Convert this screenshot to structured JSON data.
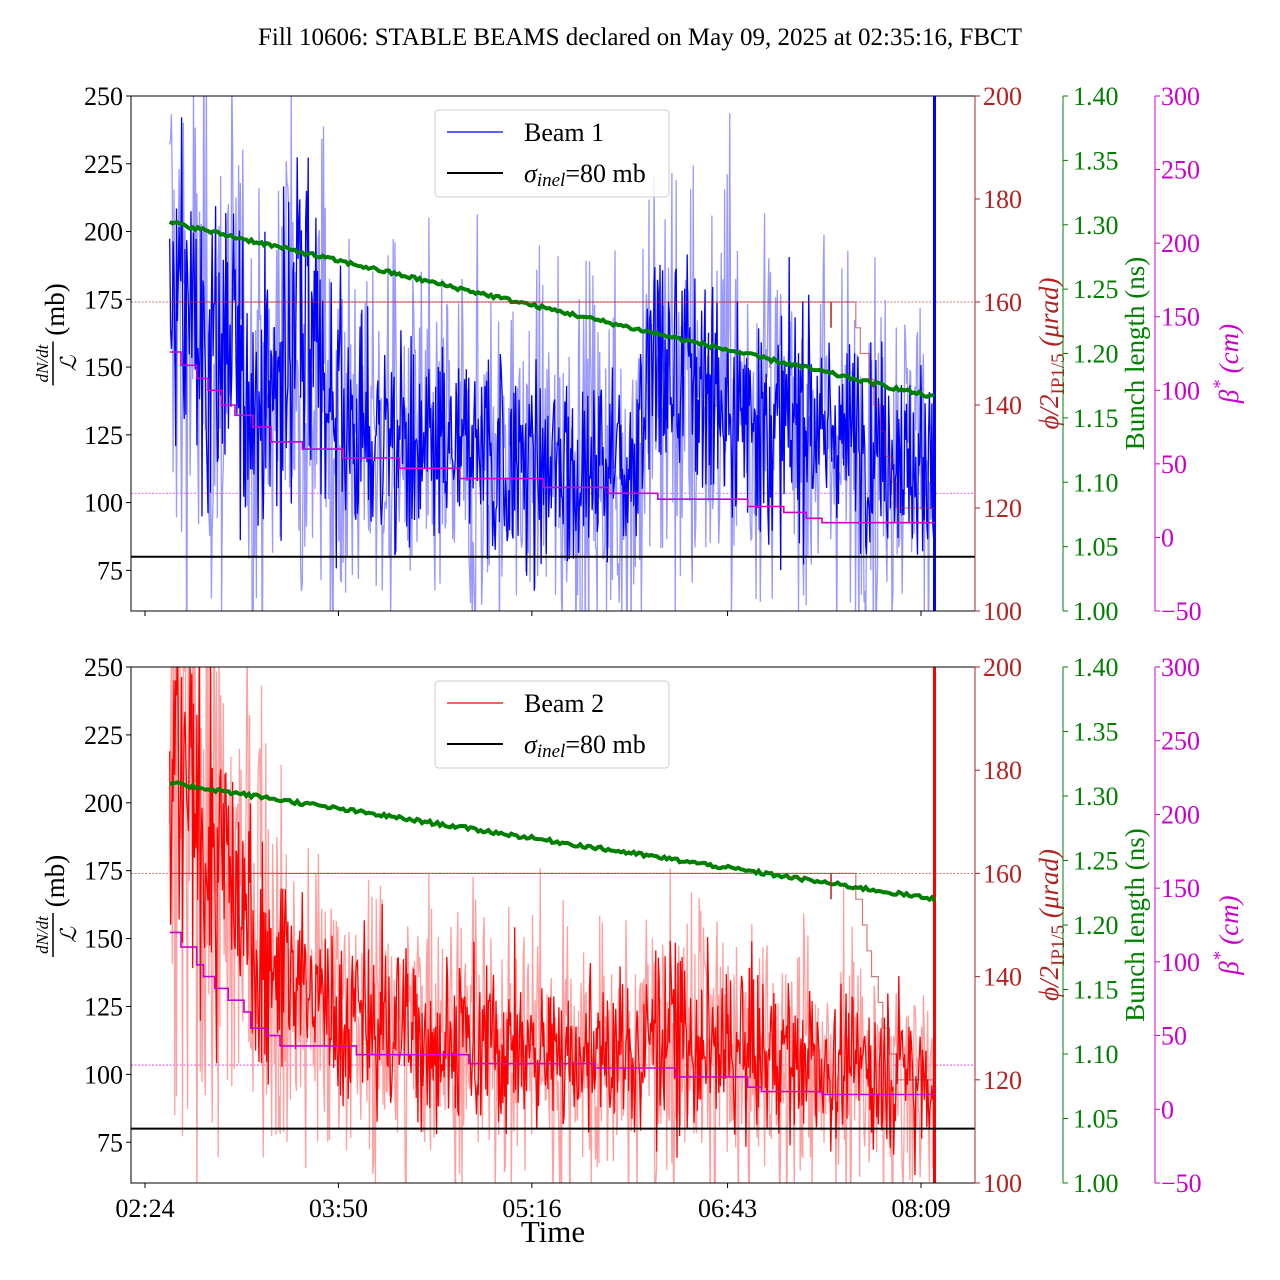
{
  "chart_data": {
    "type": "line",
    "title": "Fill 10606: STABLE BEAMS declared on May 09, 2025 at 02:35:16, FBCT",
    "xlabel": "Time",
    "x_ticks": [
      "02:24",
      "03:50",
      "05:16",
      "06:43",
      "08:09"
    ],
    "x_tick_minutes": [
      144,
      230,
      316,
      403,
      489
    ],
    "x_range_minutes": [
      139,
      514
    ],
    "data_start_minutes": 155,
    "data_end_minutes": 495,
    "colors": {
      "beam1": "#0000ff",
      "beam1_light": "#9999ff",
      "beam2": "#ff0000",
      "beam2_light": "#ffa0a0",
      "sigma": "#000000",
      "crossing": "#b22222",
      "bunch": "#008000",
      "beta": "#cc00cc"
    },
    "axes": {
      "left": {
        "label_frac_num": "dN/dt",
        "label_frac_den": "ℒ",
        "label_unit": "(mb)",
        "ylim": [
          60,
          250
        ],
        "ticks": [
          75,
          100,
          125,
          150,
          175,
          200,
          225,
          250
        ]
      },
      "crossing": {
        "label": "ϕ/2",
        "label_sub": "IP1/5",
        "label_unit": "(μrad)",
        "ylim": [
          100,
          200
        ],
        "ticks": [
          100,
          120,
          140,
          160,
          180,
          200
        ]
      },
      "bunch": {
        "label": "Bunch length (ns)",
        "ylim": [
          1.0,
          1.4
        ],
        "ticks": [
          "1.00",
          "1.05",
          "1.10",
          "1.15",
          "1.20",
          "1.25",
          "1.30",
          "1.35",
          "1.40"
        ]
      },
      "beta": {
        "label": "β",
        "label_sup": "*",
        "label_unit": "(cm)",
        "ylim": [
          -50,
          300
        ],
        "ticks": [
          "−50",
          "0",
          "50",
          "100",
          "150",
          "200",
          "250",
          "300"
        ]
      }
    },
    "panels": [
      {
        "legend": [
          {
            "label": "Beam 1",
            "series": "beam1"
          },
          {
            "label_sigma": "σ",
            "label_sub": "inel",
            "label_rest": "=80 mb",
            "series": "sigma"
          }
        ],
        "legend_position": "top-center",
        "beam_name": "Beam 1",
        "sigma_inel_mb": 80,
        "rate_envelope": {
          "comment": "Approximate mean dN/dt / L (mb) for the beam, by time (minutes since midnight)",
          "t": [
            155,
            165,
            175,
            185,
            190,
            200,
            210,
            220,
            230,
            250,
            270,
            290,
            310,
            330,
            350,
            360,
            370,
            380,
            400,
            420,
            440,
            460,
            480,
            495
          ],
          "mean": [
            175,
            165,
            150,
            160,
            140,
            135,
            170,
            150,
            130,
            122,
            118,
            118,
            115,
            112,
            115,
            112,
            150,
            145,
            138,
            132,
            128,
            122,
            118,
            115
          ],
          "spread": [
            35,
            35,
            30,
            30,
            30,
            28,
            35,
            30,
            25,
            22,
            22,
            22,
            22,
            22,
            22,
            22,
            30,
            28,
            26,
            24,
            22,
            22,
            20,
            20
          ]
        },
        "bunch_length_ns": {
          "t": [
            155,
            495
          ],
          "v": [
            1.302,
            1.166
          ]
        },
        "beta_cm": {
          "t": [
            155,
            160,
            160,
            167,
            167,
            172,
            172,
            178,
            178,
            184,
            184,
            192,
            192,
            200,
            200,
            214,
            214,
            232,
            232,
            257,
            257,
            284,
            284,
            321,
            321,
            350,
            350,
            372,
            372,
            412,
            412,
            428,
            428,
            438,
            438,
            445,
            445,
            495
          ],
          "v": [
            126,
            126,
            117,
            117,
            108,
            108,
            100,
            100,
            90,
            90,
            83,
            83,
            75,
            75,
            65,
            65,
            60,
            60,
            54,
            54,
            47,
            47,
            40,
            40,
            34,
            34,
            30,
            30,
            26,
            26,
            21,
            21,
            17,
            17,
            13,
            13,
            10,
            10
          ]
        },
        "crossing_urad": {
          "t": [
            155,
            460,
            460,
            462,
            462,
            466,
            466,
            468,
            468,
            471,
            471,
            473,
            473,
            476,
            476,
            478,
            478,
            480,
            480,
            495
          ],
          "v": [
            160,
            160,
            155,
            155,
            150,
            150,
            145,
            145,
            140,
            140,
            135,
            135,
            130,
            130,
            125,
            125,
            120,
            120,
            120,
            120
          ]
        },
        "crossing_glitch": {
          "t": 449,
          "from": 160,
          "to": 155
        },
        "crossing_ref_urad": 160,
        "beta_ref_cm": 30
      },
      {
        "legend": [
          {
            "label": "Beam 2",
            "series": "beam2"
          },
          {
            "label_sigma": "σ",
            "label_sub": "inel",
            "label_rest": "=80 mb",
            "series": "sigma"
          }
        ],
        "legend_position": "top-center",
        "beam_name": "Beam 2",
        "sigma_inel_mb": 80,
        "rate_envelope": {
          "comment": "Approximate mean dN/dt / L (mb) for the beam, by time (minutes since midnight)",
          "t": [
            155,
            165,
            175,
            185,
            195,
            205,
            215,
            230,
            250,
            270,
            290,
            310,
            330,
            350,
            360,
            370,
            380,
            400,
            420,
            440,
            460,
            480,
            495
          ],
          "mean": [
            210,
            195,
            180,
            165,
            150,
            138,
            130,
            122,
            118,
            115,
            112,
            110,
            108,
            106,
            105,
            115,
            112,
            108,
            106,
            104,
            102,
            100,
            100
          ],
          "spread": [
            45,
            40,
            35,
            30,
            25,
            22,
            20,
            18,
            18,
            18,
            17,
            17,
            16,
            16,
            16,
            20,
            18,
            17,
            16,
            16,
            15,
            15,
            15
          ]
        },
        "bunch_length_ns": {
          "t": [
            155,
            495
          ],
          "v": [
            1.31,
            1.22
          ]
        },
        "beta_cm": {
          "t": [
            155,
            160,
            160,
            167,
            167,
            170,
            170,
            175,
            175,
            181,
            181,
            188,
            188,
            191,
            191,
            198,
            198,
            204,
            204,
            238,
            238,
            288,
            288,
            344,
            344,
            380,
            380,
            412,
            412,
            418,
            418,
            445,
            445,
            495
          ],
          "v": [
            120,
            120,
            110,
            110,
            98,
            98,
            90,
            90,
            82,
            82,
            74,
            74,
            66,
            66,
            55,
            55,
            50,
            50,
            43,
            43,
            37,
            37,
            31,
            31,
            28,
            28,
            22,
            22,
            15,
            15,
            12,
            12,
            10,
            10
          ]
        },
        "crossing_urad": {
          "t": [
            155,
            460,
            460,
            463,
            463,
            465,
            465,
            467,
            467,
            470,
            470,
            472,
            472,
            475,
            475,
            478,
            478,
            480,
            480,
            495
          ],
          "v": [
            160,
            160,
            155,
            155,
            150,
            150,
            145,
            145,
            140,
            140,
            135,
            135,
            130,
            130,
            125,
            125,
            120,
            120,
            120,
            120
          ]
        },
        "crossing_glitch": {
          "t": 449,
          "from": 160,
          "to": 155
        },
        "crossing_ref_urad": 160,
        "beta_ref_cm": 30
      }
    ]
  }
}
